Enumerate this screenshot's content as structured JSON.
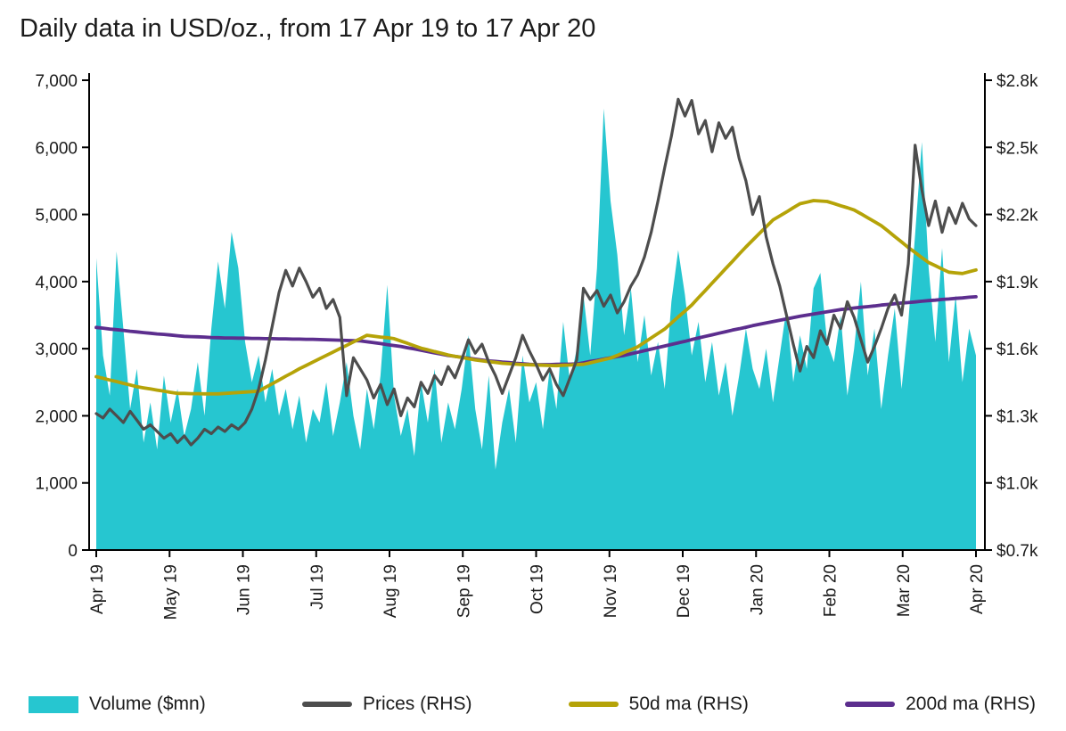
{
  "title": "Daily data in USD/oz., from 17 Apr 19 to 17 Apr 20",
  "colors": {
    "volume": "#26C6D0",
    "price": "#4D4D4D",
    "ma50": "#B5A308",
    "ma200": "#5C2E8E",
    "axis": "#000000",
    "text": "#1b1b1b"
  },
  "legend": [
    {
      "label": "Volume ($mn)",
      "swatch": "volume",
      "type": "area"
    },
    {
      "label": "Prices (RHS)",
      "swatch": "price",
      "type": "line"
    },
    {
      "label": "50d ma (RHS)",
      "swatch": "ma50",
      "type": "line"
    },
    {
      "label": "200d ma (RHS)",
      "swatch": "ma200",
      "type": "line"
    }
  ],
  "chart_data": {
    "type": "combo",
    "title": "Daily data in USD/oz., from 17 Apr 19 to 17 Apr 20",
    "grid": false,
    "legend_position": "bottom",
    "x_tick_labels": [
      "Apr 19",
      "May 19",
      "Jun 19",
      "Jul 19",
      "Aug 19",
      "Sep 19",
      "Oct 19",
      "Nov 19",
      "Dec 19",
      "Jan 20",
      "Feb 20",
      "Mar 20",
      "Apr 20"
    ],
    "left_axis": {
      "label": "Volume ($mn)",
      "min": 0,
      "max": 7000,
      "tick_values": [
        0,
        1000,
        2000,
        3000,
        4000,
        5000,
        6000,
        7000
      ],
      "tick_labels": [
        "0",
        "1,000",
        "2,000",
        "3,000",
        "4,000",
        "5,000",
        "6,000",
        "7,000"
      ]
    },
    "right_axis": {
      "label": "USD/oz",
      "min": 700,
      "max": 2800,
      "tick_values": [
        700,
        1000,
        1300,
        1600,
        1900,
        2200,
        2500,
        2800
      ],
      "tick_labels": [
        "$0.7k",
        "$1.0k",
        "$1.3k",
        "$1.6k",
        "$1.9k",
        "$2.2k",
        "$2.5k",
        "$2.8k"
      ]
    },
    "series": [
      {
        "name": "Volume ($mn)",
        "type": "area",
        "axis": "left",
        "values": [
          4350,
          2900,
          2300,
          4450,
          3300,
          2100,
          2700,
          1600,
          2200,
          1500,
          2600,
          1900,
          2400,
          1700,
          2100,
          2800,
          2000,
          3300,
          4300,
          3600,
          4740,
          4200,
          3100,
          2500,
          2900,
          2200,
          2700,
          2000,
          2400,
          1800,
          2300,
          1600,
          2100,
          1900,
          2500,
          1700,
          2200,
          2800,
          2000,
          1500,
          2400,
          1800,
          2600,
          3950,
          2300,
          1700,
          2100,
          1400,
          2500,
          1900,
          2700,
          1600,
          2200,
          1800,
          2400,
          3200,
          2100,
          1500,
          2600,
          1200,
          1900,
          2400,
          1600,
          2900,
          2200,
          2500,
          1800,
          2700,
          2100,
          3400,
          2500,
          3000,
          3800,
          2900,
          4200,
          6580,
          5200,
          4400,
          3200,
          3900,
          2800,
          3500,
          2600,
          3100,
          2400,
          3700,
          4470,
          3800,
          2900,
          3400,
          2500,
          3100,
          2300,
          2800,
          2000,
          2600,
          3300,
          2700,
          2400,
          3000,
          2200,
          2900,
          3600,
          2500,
          3200,
          2700,
          3900,
          4130,
          3100,
          2800,
          3500,
          2300,
          3000,
          4000,
          2600,
          3300,
          2100,
          2900,
          3600,
          2400,
          3400,
          4700,
          6080,
          4200,
          3100,
          4500,
          2800,
          3800,
          2500,
          3300,
          2900
        ]
      },
      {
        "name": "Prices (RHS)",
        "type": "line",
        "axis": "right",
        "values": [
          1310,
          1290,
          1330,
          1300,
          1270,
          1320,
          1280,
          1240,
          1260,
          1230,
          1200,
          1220,
          1180,
          1210,
          1170,
          1200,
          1240,
          1220,
          1250,
          1230,
          1260,
          1240,
          1270,
          1330,
          1420,
          1550,
          1700,
          1850,
          1950,
          1880,
          1960,
          1900,
          1830,
          1870,
          1780,
          1820,
          1740,
          1390,
          1560,
          1510,
          1460,
          1380,
          1440,
          1350,
          1420,
          1300,
          1380,
          1340,
          1450,
          1400,
          1480,
          1440,
          1520,
          1470,
          1550,
          1640,
          1580,
          1620,
          1540,
          1480,
          1400,
          1480,
          1560,
          1660,
          1590,
          1530,
          1460,
          1510,
          1440,
          1390,
          1470,
          1550,
          1870,
          1820,
          1860,
          1790,
          1840,
          1760,
          1810,
          1880,
          1930,
          2010,
          2120,
          2260,
          2410,
          2550,
          2715,
          2640,
          2710,
          2560,
          2620,
          2480,
          2610,
          2540,
          2590,
          2450,
          2350,
          2200,
          2280,
          2100,
          1980,
          1880,
          1750,
          1620,
          1500,
          1610,
          1560,
          1680,
          1620,
          1750,
          1690,
          1810,
          1740,
          1640,
          1540,
          1610,
          1690,
          1780,
          1840,
          1750,
          1980,
          2510,
          2310,
          2150,
          2260,
          2120,
          2230,
          2160,
          2250,
          2180,
          2150
        ]
      },
      {
        "name": "50d ma (RHS)",
        "type": "line",
        "axis": "right",
        "values": [
          1475,
          1468,
          1460,
          1453,
          1445,
          1438,
          1430,
          1425,
          1420,
          1415,
          1410,
          1405,
          1400,
          1400,
          1399,
          1399,
          1398,
          1398,
          1398,
          1400,
          1402,
          1404,
          1406,
          1408,
          1410,
          1427,
          1443,
          1460,
          1477,
          1493,
          1510,
          1525,
          1540,
          1555,
          1570,
          1585,
          1600,
          1615,
          1630,
          1645,
          1660,
          1656,
          1652,
          1649,
          1645,
          1634,
          1624,
          1613,
          1602,
          1595,
          1587,
          1580,
          1572,
          1566,
          1561,
          1555,
          1550,
          1546,
          1542,
          1539,
          1535,
          1533,
          1531,
          1529,
          1528,
          1527,
          1526,
          1525,
          1524,
          1526,
          1527,
          1529,
          1530,
          1537,
          1544,
          1551,
          1558,
          1570,
          1583,
          1595,
          1608,
          1628,
          1648,
          1668,
          1688,
          1715,
          1742,
          1768,
          1795,
          1828,
          1860,
          1893,
          1925,
          1958,
          1990,
          2023,
          2055,
          2085,
          2115,
          2145,
          2175,
          2193,
          2211,
          2230,
          2248,
          2255,
          2262,
          2260,
          2258,
          2249,
          2239,
          2230,
          2220,
          2203,
          2185,
          2168,
          2150,
          2126,
          2101,
          2077,
          2052,
          2030,
          2007,
          1985,
          1971,
          1956,
          1942,
          1939,
          1936,
          1944,
          1952
        ]
      },
      {
        "name": "200d ma (RHS)",
        "type": "line",
        "axis": "right",
        "values": [
          1695,
          1692,
          1688,
          1685,
          1682,
          1678,
          1675,
          1672,
          1669,
          1666,
          1664,
          1661,
          1658,
          1655,
          1654,
          1653,
          1652,
          1650,
          1649,
          1648,
          1648,
          1647,
          1647,
          1646,
          1646,
          1645,
          1645,
          1644,
          1644,
          1643,
          1643,
          1642,
          1642,
          1641,
          1640,
          1639,
          1638,
          1637,
          1636,
          1635,
          1631,
          1627,
          1623,
          1618,
          1614,
          1610,
          1604,
          1599,
          1593,
          1587,
          1581,
          1576,
          1570,
          1566,
          1562,
          1558,
          1553,
          1549,
          1545,
          1543,
          1540,
          1538,
          1535,
          1533,
          1530,
          1528,
          1529,
          1529,
          1530,
          1531,
          1531,
          1532,
          1537,
          1543,
          1548,
          1554,
          1559,
          1565,
          1570,
          1577,
          1584,
          1591,
          1598,
          1605,
          1612,
          1619,
          1626,
          1633,
          1641,
          1648,
          1655,
          1662,
          1669,
          1676,
          1683,
          1689,
          1696,
          1703,
          1709,
          1715,
          1721,
          1727,
          1733,
          1739,
          1745,
          1750,
          1755,
          1760,
          1765,
          1770,
          1775,
          1778,
          1782,
          1785,
          1788,
          1791,
          1795,
          1798,
          1801,
          1804,
          1806,
          1809,
          1812,
          1815,
          1817,
          1820,
          1822,
          1825,
          1827,
          1830,
          1832
        ]
      }
    ]
  }
}
